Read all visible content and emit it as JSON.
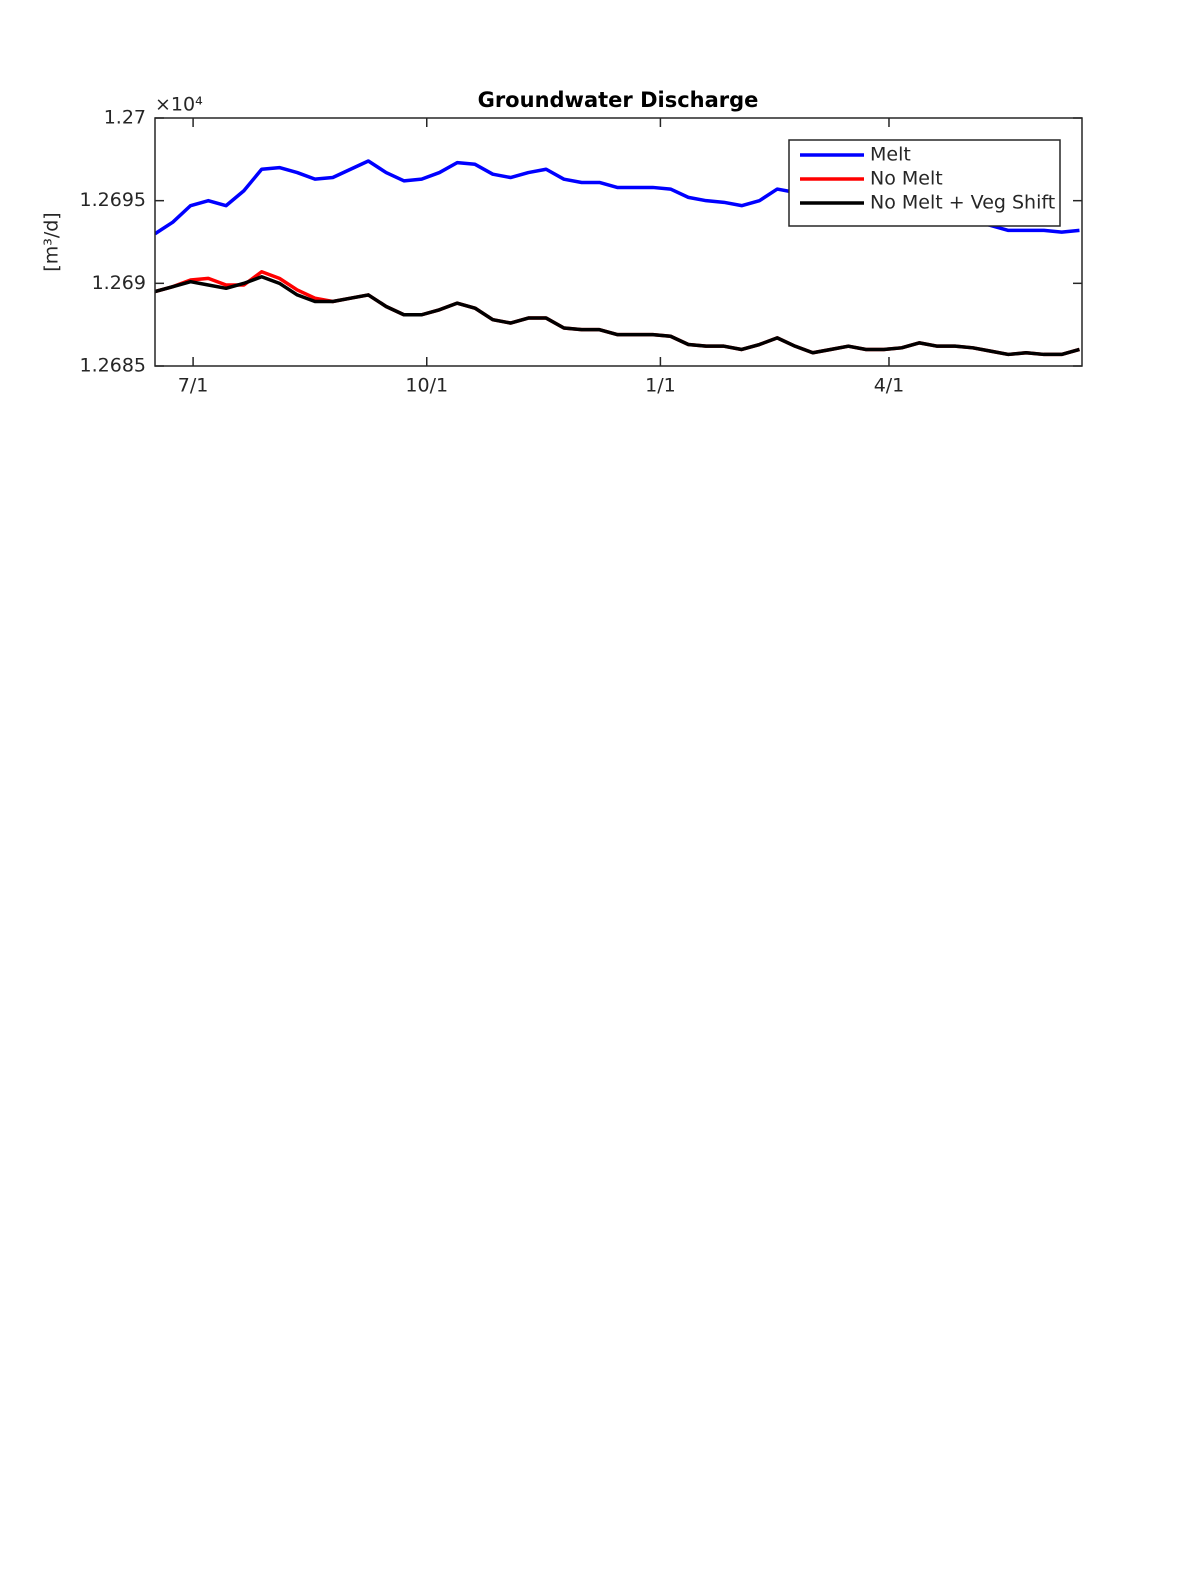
{
  "chart_data": {
    "type": "line",
    "title": "Groundwater Discharge",
    "ylabel": "[m³/d]",
    "y_exponent": "×10⁴",
    "x": [
      0,
      7,
      14,
      21,
      28,
      35,
      42,
      49,
      56,
      63,
      70,
      77,
      84,
      91,
      98,
      105,
      112,
      119,
      126,
      133,
      140,
      147,
      154,
      161,
      168,
      175,
      182,
      189,
      196,
      203,
      210,
      217,
      224,
      231,
      238,
      245,
      252,
      259,
      266,
      273,
      280,
      287,
      294,
      301,
      308,
      315,
      322,
      329,
      336,
      343,
      350,
      357,
      364
    ],
    "xlim": [
      0,
      365
    ],
    "xticks": [
      {
        "value": 15,
        "label": "7/1"
      },
      {
        "value": 107,
        "label": "10/1"
      },
      {
        "value": 199,
        "label": "1/1"
      },
      {
        "value": 289,
        "label": "4/1"
      }
    ],
    "ylim": [
      1.2685,
      1.27
    ],
    "yticks": [
      1.2685,
      1.269,
      1.2695,
      1.27
    ],
    "legend": "top-right",
    "series": [
      {
        "name": "Melt",
        "color": "#0000ff",
        "values": [
          1.2693,
          1.26937,
          1.26947,
          1.2695,
          1.26947,
          1.26956,
          1.26969,
          1.2697,
          1.26967,
          1.26963,
          1.26964,
          1.26969,
          1.26974,
          1.26967,
          1.26962,
          1.26963,
          1.26967,
          1.26973,
          1.26972,
          1.26966,
          1.26964,
          1.26967,
          1.26969,
          1.26963,
          1.26961,
          1.26961,
          1.26958,
          1.26958,
          1.26958,
          1.26957,
          1.26952,
          1.2695,
          1.26949,
          1.26947,
          1.2695,
          1.26957,
          1.26955,
          1.26952,
          1.26949,
          1.26947,
          1.26944,
          1.26941,
          1.26941,
          1.26943,
          1.26942,
          1.2694,
          1.26938,
          1.26935,
          1.26932,
          1.26932,
          1.26932,
          1.26931,
          1.26932
        ]
      },
      {
        "name": "No Melt",
        "color": "#ff0000",
        "values": [
          1.26895,
          1.26898,
          1.26902,
          1.26903,
          1.26899,
          1.26899,
          1.26907,
          1.26903,
          1.26896,
          1.26891,
          1.26889,
          1.26891,
          1.26893,
          1.26886,
          1.26881,
          1.26881,
          1.26884,
          1.26888,
          1.26885,
          1.26878,
          1.26876,
          1.26879,
          1.26879,
          1.26873,
          1.26872,
          1.26872,
          1.26869,
          1.26869,
          1.26869,
          1.26868,
          1.26863,
          1.26862,
          1.26862,
          1.2686,
          1.26863,
          1.26867,
          1.26862,
          1.26858,
          1.2686,
          1.26862,
          1.2686,
          1.2686,
          1.26861,
          1.26864,
          1.26862,
          1.26862,
          1.26861,
          1.26859,
          1.26857,
          1.26858,
          1.26857,
          1.26857,
          1.2686
        ]
      },
      {
        "name": "No Melt + Veg Shift",
        "color": "#000000",
        "values": [
          1.26895,
          1.26898,
          1.26901,
          1.26899,
          1.26897,
          1.269,
          1.26904,
          1.269,
          1.26893,
          1.26889,
          1.26889,
          1.26891,
          1.26893,
          1.26886,
          1.26881,
          1.26881,
          1.26884,
          1.26888,
          1.26885,
          1.26878,
          1.26876,
          1.26879,
          1.26879,
          1.26873,
          1.26872,
          1.26872,
          1.26869,
          1.26869,
          1.26869,
          1.26868,
          1.26863,
          1.26862,
          1.26862,
          1.2686,
          1.26863,
          1.26867,
          1.26862,
          1.26858,
          1.2686,
          1.26862,
          1.2686,
          1.2686,
          1.26861,
          1.26864,
          1.26862,
          1.26862,
          1.26861,
          1.26859,
          1.26857,
          1.26858,
          1.26857,
          1.26857,
          1.2686
        ]
      }
    ]
  }
}
